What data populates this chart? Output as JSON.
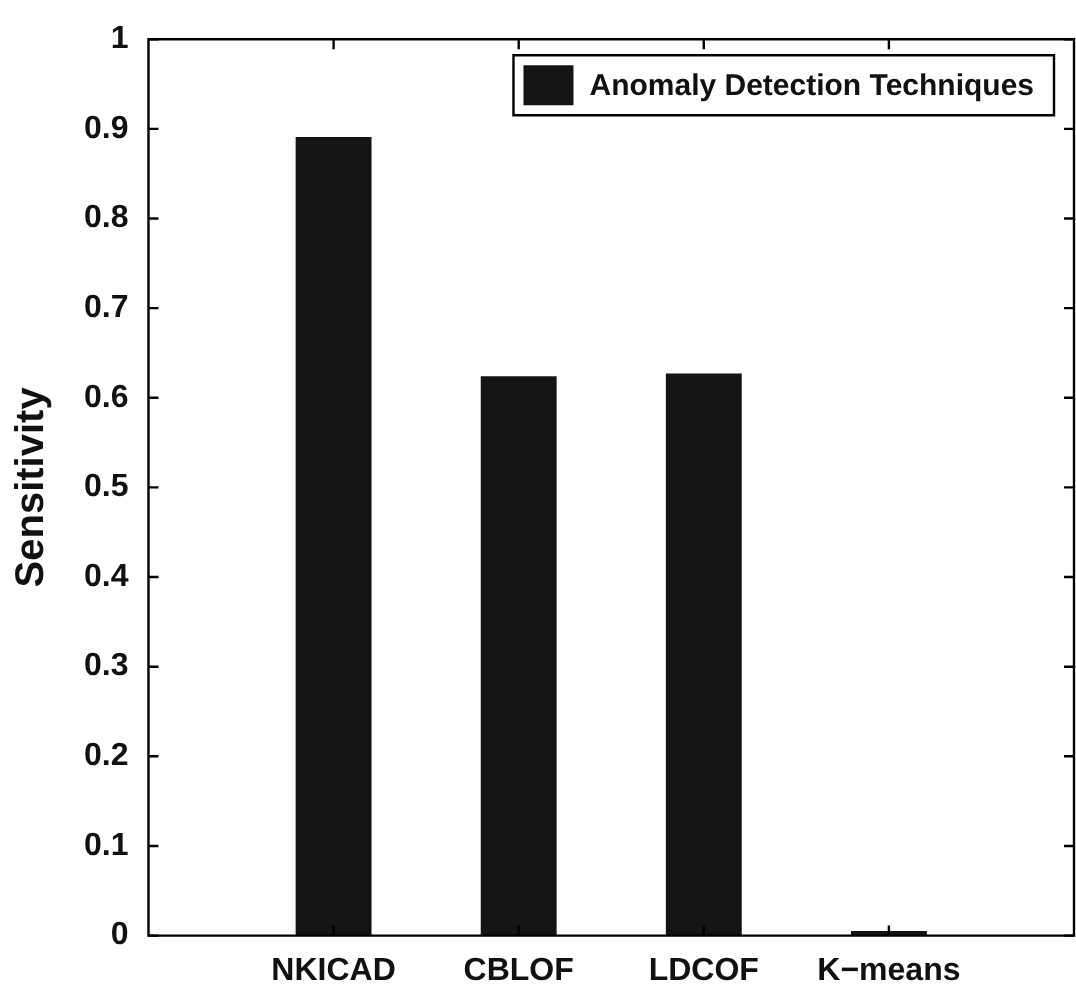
{
  "chart_data": {
    "type": "bar",
    "ylabel": "Sensitivity",
    "categories": [
      "NKICAD",
      "CBLOF",
      "LDCOF",
      "K−means"
    ],
    "series": [
      {
        "name": "Anomaly Detection Techniques",
        "color": "#141414",
        "values": [
          0.891,
          0.624,
          0.627,
          0.005
        ]
      }
    ],
    "ylim": [
      0,
      1
    ],
    "yticks": [
      0,
      0.1,
      0.2,
      0.3,
      0.4,
      0.5,
      0.6,
      0.7,
      0.8,
      0.9,
      1
    ],
    "grid": false,
    "legend": "top right"
  }
}
